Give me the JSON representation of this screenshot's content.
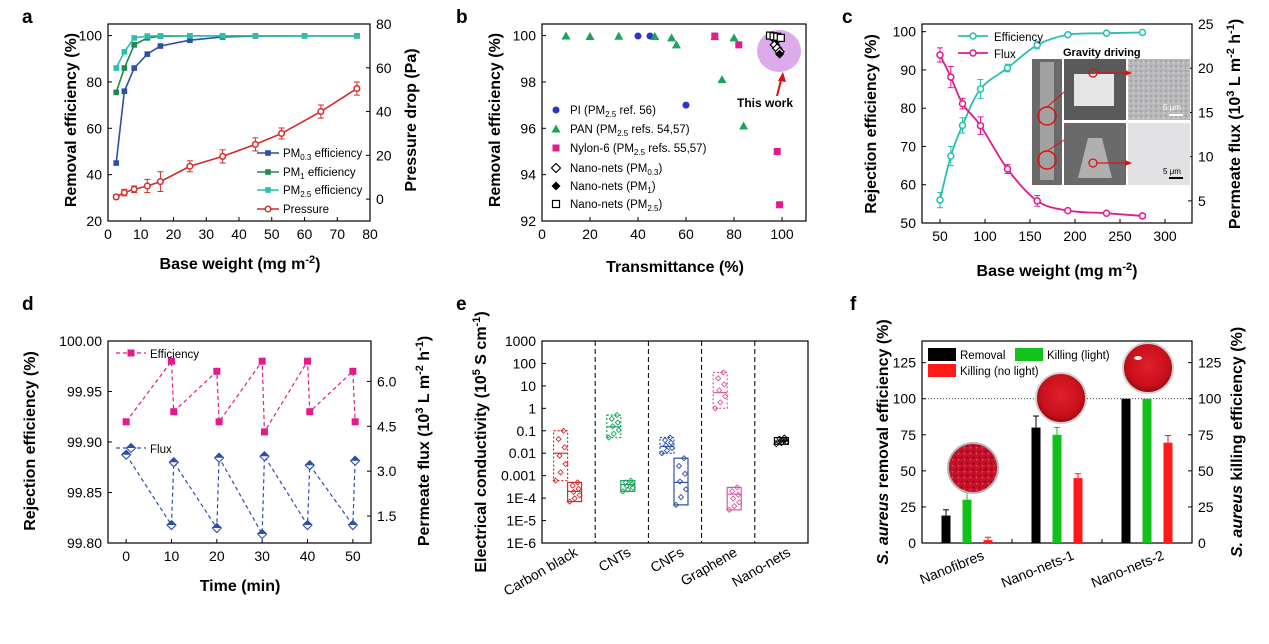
{
  "chart_data": [
    {
      "panel": "a",
      "type": "line",
      "xlabel": "Base weight (mg m⁻²)",
      "ylabel": "Removal efficiency (%)",
      "y2label": "Pressure drop (Pa)",
      "xlim": [
        0,
        80
      ],
      "ylim": [
        20,
        105
      ],
      "y2lim": [
        -10,
        80
      ],
      "xticks": [
        0,
        10,
        20,
        30,
        40,
        50,
        60,
        70,
        80
      ],
      "yticks": [
        20,
        40,
        60,
        80,
        100
      ],
      "y2ticks": [
        0,
        20,
        40,
        60,
        80
      ],
      "series": [
        {
          "name": "PM0.3 efficiency",
          "color": "#2d4fa8",
          "marker": "square",
          "axis": "left",
          "x": [
            2.5,
            5,
            8,
            12,
            16,
            25,
            35,
            45,
            60,
            76
          ],
          "y": [
            45,
            76,
            86,
            92,
            95.5,
            98,
            99.4,
            99.8,
            99.9,
            99.9
          ]
        },
        {
          "name": "PM1 efficiency",
          "color": "#1f8a4c",
          "marker": "square",
          "axis": "left",
          "x": [
            2.5,
            5,
            8,
            12,
            16,
            25,
            35,
            45,
            60,
            76
          ],
          "y": [
            75.5,
            86,
            96,
            99,
            99.7,
            99.9,
            99.9,
            99.9,
            99.9,
            99.9
          ]
        },
        {
          "name": "PM2.5 efficiency",
          "color": "#2bbfb0",
          "marker": "square",
          "axis": "left",
          "x": [
            2.5,
            5,
            8,
            12,
            16,
            25,
            35,
            45,
            60,
            76
          ],
          "y": [
            86,
            93,
            99,
            99.8,
            99.9,
            99.9,
            99.9,
            99.9,
            99.9,
            99.9
          ]
        },
        {
          "name": "Pressure",
          "color": "#d42a2a",
          "marker": "circle",
          "axis": "right",
          "x": [
            2.5,
            5,
            8,
            12,
            16,
            25,
            35,
            45,
            53,
            65,
            76
          ],
          "y": [
            1,
            3,
            4.5,
            6,
            8,
            15,
            19.5,
            25,
            30,
            40,
            50.5
          ],
          "err": [
            1,
            1.5,
            1.5,
            3,
            4.5,
            2.5,
            3,
            3,
            2.5,
            3,
            3
          ]
        }
      ]
    },
    {
      "panel": "b",
      "type": "scatter",
      "xlabel": "Transmittance (%)",
      "ylabel": "Removal efficiency (%)",
      "xlim": [
        0,
        110
      ],
      "ylim": [
        92,
        100.5
      ],
      "xticks": [
        0,
        20,
        40,
        60,
        80,
        100
      ],
      "yticks": [
        92,
        94,
        96,
        98,
        100
      ],
      "annotation": "This work",
      "series": [
        {
          "name": "PI (PM2.5 ref. 56)",
          "color": "#2b35c8",
          "marker": "circle",
          "x": [
            40,
            45,
            60
          ],
          "y": [
            99.98,
            99.98,
            97
          ]
        },
        {
          "name": "PAN (PM2.5 refs. 54,57)",
          "color": "#1aa35a",
          "marker": "triangle",
          "x": [
            10,
            20,
            32,
            47,
            54,
            56,
            72,
            75,
            80,
            84
          ],
          "y": [
            99.98,
            99.96,
            99.97,
            99.96,
            99.9,
            99.6,
            99.95,
            98.1,
            99.9,
            96.1
          ]
        },
        {
          "name": "Nylon-6 (PM2.5 refs. 55,57)",
          "color": "#e21a8a",
          "marker": "square",
          "x": [
            72,
            82,
            98,
            99
          ],
          "y": [
            99.98,
            99.6,
            95,
            92.7
          ]
        },
        {
          "name": "Nano-nets (PM0.3)",
          "color": "#000000",
          "marker": "diamond-open",
          "x": [
            96,
            97,
            98,
            99
          ],
          "y": [
            99.95,
            99.6,
            99.45,
            99.3
          ]
        },
        {
          "name": "Nano-nets (PM1)",
          "color": "#000000",
          "marker": "diamond",
          "x": [
            96,
            98,
            99
          ],
          "y": [
            99.98,
            99.8,
            99.2
          ]
        },
        {
          "name": "Nano-nets (PM2.5)",
          "color": "#000000",
          "marker": "square-open",
          "x": [
            95,
            96.5,
            98,
            99.5
          ],
          "y": [
            100,
            99.97,
            99.95,
            99.9
          ]
        }
      ]
    },
    {
      "panel": "c",
      "type": "line",
      "xlabel": "Base weight (mg m⁻²)",
      "ylabel": "Rejection efficiency (%)",
      "y2label": "Permeate flux (10³ L m⁻² h⁻¹)",
      "xlim": [
        30,
        330
      ],
      "ylim": [
        50,
        102
      ],
      "y2lim": [
        2.5,
        25
      ],
      "xticks": [
        50,
        100,
        150,
        200,
        250,
        300
      ],
      "yticks": [
        50,
        60,
        70,
        80,
        90,
        100
      ],
      "y2ticks": [
        5,
        10,
        15,
        20,
        25
      ],
      "inset_texts": [
        "Gravity driving",
        "5 μm",
        "5 μm"
      ],
      "series": [
        {
          "name": "Efficiency",
          "color": "#2bbfb0",
          "marker": "circle",
          "axis": "left",
          "x": [
            50,
            62,
            75,
            95,
            125,
            158,
            192,
            235,
            275
          ],
          "y": [
            56,
            67.5,
            75.5,
            85,
            90.5,
            96.5,
            99.2,
            99.6,
            99.8
          ],
          "err": [
            2,
            2.5,
            2,
            2.5,
            1,
            1,
            0.4,
            0.3,
            0.2
          ]
        },
        {
          "name": "Flux",
          "color": "#e21a8a",
          "marker": "circle",
          "axis": "right",
          "x": [
            50,
            62,
            75,
            95,
            125,
            158,
            192,
            235,
            275
          ],
          "y": [
            21.5,
            19,
            16,
            13.5,
            8.6,
            5,
            3.9,
            3.6,
            3.3
          ],
          "err": [
            0.8,
            1.2,
            0.6,
            1,
            0.5,
            0.6,
            0.2,
            0.2,
            0.1
          ]
        }
      ]
    },
    {
      "panel": "d",
      "type": "line",
      "xlabel": "Time (min)",
      "ylabel": "Rejection efficiency (%)",
      "y2label": "Permeate flux (10³ L m⁻² h⁻¹)",
      "xlim": [
        -4,
        54
      ],
      "ylim": [
        99.8,
        100
      ],
      "y2lim": [
        0.6,
        7.35
      ],
      "xticks": [
        0,
        10,
        20,
        30,
        40,
        50
      ],
      "yticks": [
        99.8,
        99.85,
        99.9,
        99.95,
        100
      ],
      "y2ticks": [
        1.5,
        3.0,
        4.5,
        6.0
      ],
      "series": [
        {
          "name": "Efficiency",
          "color": "#e21a8a",
          "marker": "square",
          "axis": "left",
          "x": [
            0,
            10,
            10.5,
            20,
            20.5,
            30,
            30.5,
            40,
            40.5,
            50,
            50.5
          ],
          "y": [
            99.92,
            99.98,
            99.93,
            99.97,
            99.92,
            99.98,
            99.91,
            99.98,
            99.93,
            99.97,
            99.92
          ]
        },
        {
          "name": "Flux",
          "color": "#2d4fa8",
          "marker": "diamond",
          "axis": "right",
          "x": [
            0,
            10,
            10.5,
            20,
            20.5,
            30,
            30.5,
            40,
            40.5,
            50,
            50.5
          ],
          "y": [
            3.55,
            1.2,
            3.3,
            1.1,
            3.45,
            0.9,
            3.5,
            1.2,
            3.2,
            1.2,
            3.35
          ]
        }
      ]
    },
    {
      "panel": "e",
      "type": "scatter",
      "xlabel": "",
      "ylabel": "Electrical conductivity (10⁵ S cm⁻¹)",
      "yscale": "log",
      "ylim_exp": [
        -6,
        3
      ],
      "yticks": [
        "1E-6",
        "1E-5",
        "1E-4",
        "0.001",
        "0.01",
        "0.1",
        "1",
        "10",
        "100",
        "1000"
      ],
      "categories": [
        "Carbon black",
        "CNTs",
        "CNFs",
        "Graphene",
        "Nano-nets"
      ],
      "groups": [
        {
          "category": "Carbon black",
          "color": "#d42a2a",
          "box_low": [
            0.0006,
            0.01,
            0.1
          ],
          "box_high": [
            7e-05,
            0.0002,
            0.0005
          ]
        },
        {
          "category": "CNTs",
          "color": "#1aa35a",
          "box_low": [
            0.05,
            0.15,
            0.5
          ],
          "box_high": [
            0.0002,
            0.0004,
            0.0006
          ]
        },
        {
          "category": "CNFs",
          "color": "#2d4fa8",
          "box_low": [
            0.01,
            0.02,
            0.05
          ],
          "box_high": [
            5e-05,
            0.0005,
            0.006
          ]
        },
        {
          "category": "Graphene",
          "color": "#e0569e",
          "box_low": [
            1,
            5,
            40
          ],
          "box_high": [
            3e-05,
            0.00015,
            0.0003
          ]
        },
        {
          "category": "Nano-nets",
          "color": "#000000",
          "box_low": [
            0.025,
            0.035,
            0.05
          ],
          "box_high": null
        }
      ]
    },
    {
      "panel": "f",
      "type": "bar",
      "ylabel": "S. aureus removal efficiency (%)",
      "y2label": "S. aureus killing efficiency (%)",
      "ylim": [
        0,
        140
      ],
      "yticks": [
        0,
        25,
        50,
        75,
        100,
        125
      ],
      "categories": [
        "Nanofibres",
        "Nano-nets-1",
        "Nano-nets-2"
      ],
      "series": [
        {
          "name": "Removal",
          "color": "#000000",
          "values": [
            19,
            80,
            100
          ],
          "err": [
            4,
            8,
            0
          ]
        },
        {
          "name": "Killing (light)",
          "color": "#12c21a",
          "values": [
            30,
            75,
            100
          ],
          "err": [
            5,
            5,
            0
          ]
        },
        {
          "name": "Killing (no light)",
          "color": "#ff1a1a",
          "values": [
            2,
            45,
            69.5
          ],
          "err": [
            2,
            3,
            5
          ]
        }
      ]
    }
  ],
  "texts": {
    "a": {
      "letter": "a",
      "ylabel": "Removal efficiency (%)",
      "y2label": "Pressure drop (Pa)",
      "xlabel_pre": "Base weight (mg m",
      "xlabel_sup": "-2",
      "xlabel_post": ")",
      "legend": [
        {
          "pre": "PM",
          "sub": "0.3",
          "post": " efficiency"
        },
        {
          "pre": "PM",
          "sub": "1",
          "post": " efficiency"
        },
        {
          "pre": "PM",
          "sub": "2.5",
          "post": " efficiency"
        },
        {
          "pre": "Pressure",
          "sub": "",
          "post": ""
        }
      ]
    },
    "b": {
      "letter": "b",
      "ylabel": "Removal efficiency (%)",
      "xlabel": "Transmittance (%)",
      "annotation": "This work",
      "legend": [
        {
          "pre": "PI (PM",
          "sub": "2.5",
          "post": " ref. 56)"
        },
        {
          "pre": "PAN (PM",
          "sub": "2.5",
          "post": " refs. 54,57)"
        },
        {
          "pre": "Nylon-6 (PM",
          "sub": "2.5",
          "post": " refs. 55,57)"
        },
        {
          "pre": "Nano-nets (PM",
          "sub": "0.3",
          "post": ")"
        },
        {
          "pre": "Nano-nets (PM",
          "sub": "1",
          "post": ")"
        },
        {
          "pre": "Nano-nets (PM",
          "sub": "2.5",
          "post": ")"
        }
      ]
    },
    "c": {
      "letter": "c",
      "ylabel": "Rejection efficiency (%)",
      "y2label_pre": "Permeate flux (10",
      "y2label_sup1": "3",
      "y2label_mid": " L m",
      "y2label_sup2": "-2",
      "y2label_mid2": " h",
      "y2label_sup3": "-1",
      "y2label_post": ")",
      "xlabel_pre": "Base weight (mg m",
      "xlabel_sup": "-2",
      "xlabel_post": ")",
      "legend": [
        "Efficiency",
        "Flux"
      ],
      "inset_title": "Gravity driving",
      "scale1": "5 μm",
      "scale2": "5 μm"
    },
    "d": {
      "letter": "d",
      "ylabel": "Rejection efficiency (%)",
      "y2label_pre": "Permeate flux (10",
      "y2label_sup1": "3",
      "y2label_mid": " L m",
      "y2label_sup2": "-2",
      "y2label_mid2": " h",
      "y2label_sup3": "-1",
      "y2label_post": ")",
      "xlabel": "Time (min)",
      "legend": [
        "Efficiency",
        "Flux"
      ]
    },
    "e": {
      "letter": "e",
      "ylabel_pre": "Electrical conductivity (10",
      "ylabel_sup1": "5",
      "ylabel_mid": " S cm",
      "ylabel_sup2": "-1",
      "ylabel_post": ")"
    },
    "f": {
      "letter": "f",
      "ylabel_italic": "S. aureus",
      "ylabel_rest": " removal efficiency (%)",
      "y2label_italic": "S. aureus",
      "y2label_rest": " killing efficiency (%)",
      "legend": [
        "Removal",
        "Killing (light)",
        "Killing (no light)"
      ]
    }
  }
}
